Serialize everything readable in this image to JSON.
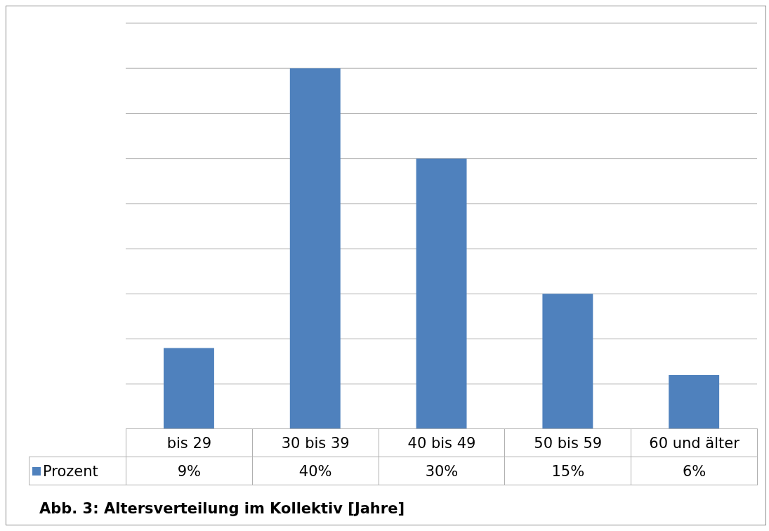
{
  "chart_data": {
    "type": "bar",
    "title": "Abb. 3: Altersverteilung im Kollektiv [Jahre]",
    "categories": [
      "bis 29",
      "30 bis 39",
      "40 bis 49",
      "50 bis 59",
      "60 und älter"
    ],
    "series": [
      {
        "name": "Prozent",
        "color": "#4f81bd",
        "values": [
          9,
          40,
          30,
          15,
          6
        ],
        "value_labels": [
          "9%",
          "40%",
          "30%",
          "15%",
          "6%"
        ]
      }
    ],
    "ylim": [
      0,
      45
    ],
    "grid": "y",
    "legend": "bottom"
  }
}
